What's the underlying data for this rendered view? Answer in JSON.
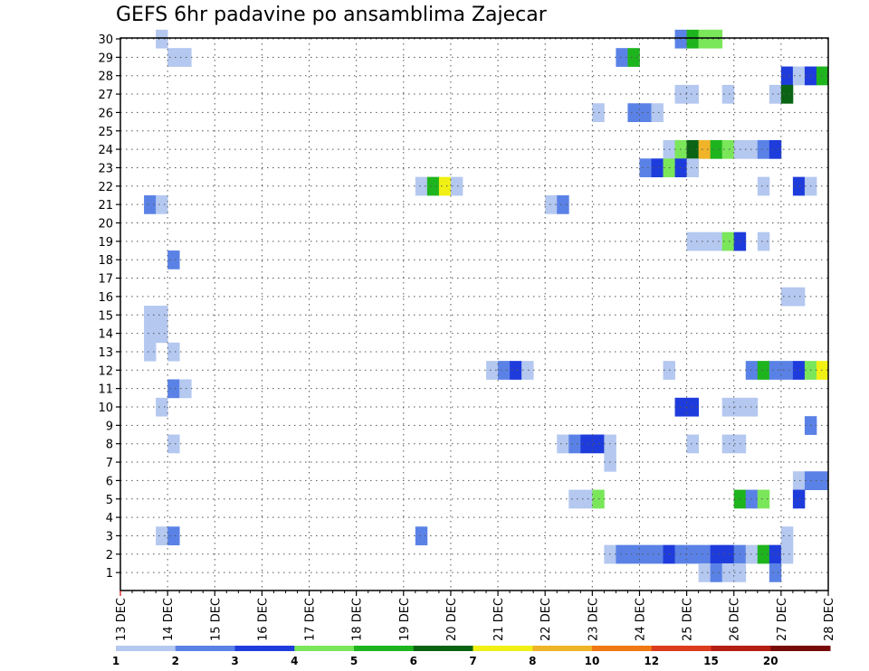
{
  "chart_data": {
    "type": "heatmap",
    "title": "GEFS 6hr padavine po ansamblima Zajecar",
    "xlabel": "",
    "ylabel": "",
    "x_ticks": [
      "13 DEC",
      "14 DEC",
      "15 DEC",
      "16 DEC",
      "17 DEC",
      "18 DEC",
      "19 DEC",
      "20 DEC",
      "21 DEC",
      "22 DEC",
      "23 DEC",
      "24 DEC",
      "25 DEC",
      "26 DEC",
      "27 DEC",
      "28 DEC"
    ],
    "y_ticks": [
      1,
      2,
      3,
      4,
      5,
      6,
      7,
      8,
      9,
      10,
      11,
      12,
      13,
      14,
      15,
      16,
      17,
      18,
      19,
      20,
      21,
      22,
      23,
      24,
      25,
      26,
      27,
      28,
      29,
      30
    ],
    "xlim": [
      "13 DEC",
      "28 DEC"
    ],
    "ylim": [
      1,
      30
    ],
    "grid": true,
    "legend": {
      "placement": "bottom",
      "labels": [
        "1",
        "2",
        "3",
        "4",
        "5",
        "6",
        "7",
        "8",
        "10",
        "12",
        "15",
        "20"
      ],
      "colors": [
        "#b4c8f0",
        "#5a82e6",
        "#1e3cdc",
        "#7ae65a",
        "#1eb41e",
        "#0a6414",
        "#f0f014",
        "#f0b428",
        "#f07814",
        "#dc3c1e",
        "#b41e14",
        "#780a0a"
      ]
    },
    "cells": [
      {
        "m": 30,
        "t": "13 DEC 18",
        "c": 1
      },
      {
        "m": 30,
        "t": "24 DEC 18",
        "c": 2
      },
      {
        "m": 30,
        "t": "25 DEC 00",
        "c": 5
      },
      {
        "m": 30,
        "t": "25 DEC 06",
        "c": 4
      },
      {
        "m": 30,
        "t": "25 DEC 12",
        "c": 4
      },
      {
        "m": 29,
        "t": "14 DEC 00",
        "c": 1
      },
      {
        "m": 29,
        "t": "14 DEC 06",
        "c": 1
      },
      {
        "m": 29,
        "t": "23 DEC 12",
        "c": 2
      },
      {
        "m": 29,
        "t": "23 DEC 18",
        "c": 5
      },
      {
        "m": 28,
        "t": "27 DEC 00",
        "c": 3
      },
      {
        "m": 28,
        "t": "27 DEC 06",
        "c": 1
      },
      {
        "m": 28,
        "t": "27 DEC 12",
        "c": 3
      },
      {
        "m": 28,
        "t": "27 DEC 18",
        "c": 5
      },
      {
        "m": 27,
        "t": "24 DEC 18",
        "c": 1
      },
      {
        "m": 27,
        "t": "25 DEC 00",
        "c": 1
      },
      {
        "m": 27,
        "t": "25 DEC 18",
        "c": 1
      },
      {
        "m": 27,
        "t": "26 DEC 18",
        "c": 1
      },
      {
        "m": 27,
        "t": "27 DEC 00",
        "c": 6
      },
      {
        "m": 26,
        "t": "23 DEC 00",
        "c": 1
      },
      {
        "m": 26,
        "t": "23 DEC 18",
        "c": 2
      },
      {
        "m": 26,
        "t": "24 DEC 00",
        "c": 2
      },
      {
        "m": 26,
        "t": "24 DEC 06",
        "c": 1
      },
      {
        "m": 24,
        "t": "24 DEC 12",
        "c": 1
      },
      {
        "m": 24,
        "t": "24 DEC 18",
        "c": 4
      },
      {
        "m": 24,
        "t": "25 DEC 00",
        "c": 6
      },
      {
        "m": 24,
        "t": "25 DEC 06",
        "c": 8
      },
      {
        "m": 24,
        "t": "25 DEC 12",
        "c": 5
      },
      {
        "m": 24,
        "t": "25 DEC 18",
        "c": 4
      },
      {
        "m": 24,
        "t": "26 DEC 00",
        "c": 1
      },
      {
        "m": 24,
        "t": "26 DEC 06",
        "c": 1
      },
      {
        "m": 24,
        "t": "26 DEC 12",
        "c": 2
      },
      {
        "m": 24,
        "t": "26 DEC 18",
        "c": 3
      },
      {
        "m": 23,
        "t": "24 DEC 00",
        "c": 2
      },
      {
        "m": 23,
        "t": "24 DEC 06",
        "c": 3
      },
      {
        "m": 23,
        "t": "24 DEC 12",
        "c": 4
      },
      {
        "m": 23,
        "t": "24 DEC 18",
        "c": 3
      },
      {
        "m": 23,
        "t": "25 DEC 00",
        "c": 1
      },
      {
        "m": 22,
        "t": "19 DEC 06",
        "c": 1
      },
      {
        "m": 22,
        "t": "19 DEC 12",
        "c": 5
      },
      {
        "m": 22,
        "t": "19 DEC 18",
        "c": 7
      },
      {
        "m": 22,
        "t": "20 DEC 00",
        "c": 1
      },
      {
        "m": 22,
        "t": "26 DEC 12",
        "c": 1
      },
      {
        "m": 22,
        "t": "27 DEC 06",
        "c": 3
      },
      {
        "m": 22,
        "t": "27 DEC 12",
        "c": 1
      },
      {
        "m": 21,
        "t": "13 DEC 12",
        "c": 2
      },
      {
        "m": 21,
        "t": "13 DEC 18",
        "c": 1
      },
      {
        "m": 21,
        "t": "22 DEC 00",
        "c": 1
      },
      {
        "m": 21,
        "t": "22 DEC 06",
        "c": 2
      },
      {
        "m": 19,
        "t": "25 DEC 00",
        "c": 1
      },
      {
        "m": 19,
        "t": "25 DEC 06",
        "c": 1
      },
      {
        "m": 19,
        "t": "25 DEC 12",
        "c": 1
      },
      {
        "m": 19,
        "t": "25 DEC 18",
        "c": 4
      },
      {
        "m": 19,
        "t": "26 DEC 00",
        "c": 3
      },
      {
        "m": 19,
        "t": "26 DEC 12",
        "c": 1
      },
      {
        "m": 18,
        "t": "14 DEC 00",
        "c": 2
      },
      {
        "m": 16,
        "t": "27 DEC 00",
        "c": 1
      },
      {
        "m": 16,
        "t": "27 DEC 06",
        "c": 1
      },
      {
        "m": 15,
        "t": "13 DEC 12",
        "c": 1
      },
      {
        "m": 15,
        "t": "13 DEC 18",
        "c": 1
      },
      {
        "m": 14,
        "t": "13 DEC 12",
        "c": 1
      },
      {
        "m": 14,
        "t": "13 DEC 18",
        "c": 1
      },
      {
        "m": 13,
        "t": "13 DEC 12",
        "c": 1
      },
      {
        "m": 13,
        "t": "14 DEC 00",
        "c": 1
      },
      {
        "m": 12,
        "t": "20 DEC 18",
        "c": 1
      },
      {
        "m": 12,
        "t": "21 DEC 00",
        "c": 2
      },
      {
        "m": 12,
        "t": "21 DEC 06",
        "c": 3
      },
      {
        "m": 12,
        "t": "21 DEC 12",
        "c": 1
      },
      {
        "m": 12,
        "t": "24 DEC 12",
        "c": 1
      },
      {
        "m": 12,
        "t": "26 DEC 06",
        "c": 2
      },
      {
        "m": 12,
        "t": "26 DEC 12",
        "c": 5
      },
      {
        "m": 12,
        "t": "26 DEC 18",
        "c": 2
      },
      {
        "m": 12,
        "t": "27 DEC 00",
        "c": 2
      },
      {
        "m": 12,
        "t": "27 DEC 06",
        "c": 3
      },
      {
        "m": 12,
        "t": "27 DEC 12",
        "c": 4
      },
      {
        "m": 12,
        "t": "27 DEC 18",
        "c": 7
      },
      {
        "m": 11,
        "t": "14 DEC 00",
        "c": 2
      },
      {
        "m": 11,
        "t": "14 DEC 06",
        "c": 1
      },
      {
        "m": 10,
        "t": "13 DEC 18",
        "c": 1
      },
      {
        "m": 10,
        "t": "24 DEC 18",
        "c": 3
      },
      {
        "m": 10,
        "t": "25 DEC 00",
        "c": 3
      },
      {
        "m": 10,
        "t": "25 DEC 18",
        "c": 1
      },
      {
        "m": 10,
        "t": "26 DEC 00",
        "c": 1
      },
      {
        "m": 10,
        "t": "26 DEC 06",
        "c": 1
      },
      {
        "m": 9,
        "t": "27 DEC 12",
        "c": 2
      },
      {
        "m": 8,
        "t": "14 DEC 00",
        "c": 1
      },
      {
        "m": 8,
        "t": "22 DEC 06",
        "c": 1
      },
      {
        "m": 8,
        "t": "22 DEC 12",
        "c": 2
      },
      {
        "m": 8,
        "t": "22 DEC 18",
        "c": 3
      },
      {
        "m": 8,
        "t": "23 DEC 00",
        "c": 3
      },
      {
        "m": 8,
        "t": "23 DEC 06",
        "c": 1
      },
      {
        "m": 8,
        "t": "25 DEC 00",
        "c": 1
      },
      {
        "m": 8,
        "t": "25 DEC 18",
        "c": 1
      },
      {
        "m": 8,
        "t": "26 DEC 00",
        "c": 1
      },
      {
        "m": 7,
        "t": "23 DEC 06",
        "c": 1
      },
      {
        "m": 6,
        "t": "27 DEC 06",
        "c": 1
      },
      {
        "m": 6,
        "t": "27 DEC 12",
        "c": 2
      },
      {
        "m": 6,
        "t": "27 DEC 18",
        "c": 2
      },
      {
        "m": 5,
        "t": "22 DEC 12",
        "c": 1
      },
      {
        "m": 5,
        "t": "22 DEC 18",
        "c": 1
      },
      {
        "m": 5,
        "t": "23 DEC 00",
        "c": 4
      },
      {
        "m": 5,
        "t": "26 DEC 00",
        "c": 5
      },
      {
        "m": 5,
        "t": "26 DEC 06",
        "c": 2
      },
      {
        "m": 5,
        "t": "26 DEC 12",
        "c": 4
      },
      {
        "m": 5,
        "t": "27 DEC 06",
        "c": 3
      },
      {
        "m": 3,
        "t": "13 DEC 18",
        "c": 1
      },
      {
        "m": 3,
        "t": "14 DEC 00",
        "c": 2
      },
      {
        "m": 3,
        "t": "19 DEC 06",
        "c": 2
      },
      {
        "m": 3,
        "t": "27 DEC 00",
        "c": 1
      },
      {
        "m": 2,
        "t": "23 DEC 06",
        "c": 1
      },
      {
        "m": 2,
        "t": "23 DEC 12",
        "c": 2
      },
      {
        "m": 2,
        "t": "23 DEC 18",
        "c": 2
      },
      {
        "m": 2,
        "t": "24 DEC 00",
        "c": 2
      },
      {
        "m": 2,
        "t": "24 DEC 06",
        "c": 2
      },
      {
        "m": 2,
        "t": "24 DEC 12",
        "c": 3
      },
      {
        "m": 2,
        "t": "24 DEC 18",
        "c": 2
      },
      {
        "m": 2,
        "t": "25 DEC 00",
        "c": 2
      },
      {
        "m": 2,
        "t": "25 DEC 06",
        "c": 2
      },
      {
        "m": 2,
        "t": "25 DEC 12",
        "c": 3
      },
      {
        "m": 2,
        "t": "25 DEC 18",
        "c": 3
      },
      {
        "m": 2,
        "t": "26 DEC 00",
        "c": 2
      },
      {
        "m": 2,
        "t": "26 DEC 06",
        "c": 1
      },
      {
        "m": 2,
        "t": "26 DEC 12",
        "c": 5
      },
      {
        "m": 2,
        "t": "26 DEC 18",
        "c": 3
      },
      {
        "m": 2,
        "t": "27 DEC 00",
        "c": 1
      },
      {
        "m": 1,
        "t": "25 DEC 06",
        "c": 1
      },
      {
        "m": 1,
        "t": "25 DEC 12",
        "c": 2
      },
      {
        "m": 1,
        "t": "25 DEC 18",
        "c": 1
      },
      {
        "m": 1,
        "t": "26 DEC 00",
        "c": 1
      },
      {
        "m": 1,
        "t": "26 DEC 18",
        "c": 2
      }
    ]
  }
}
